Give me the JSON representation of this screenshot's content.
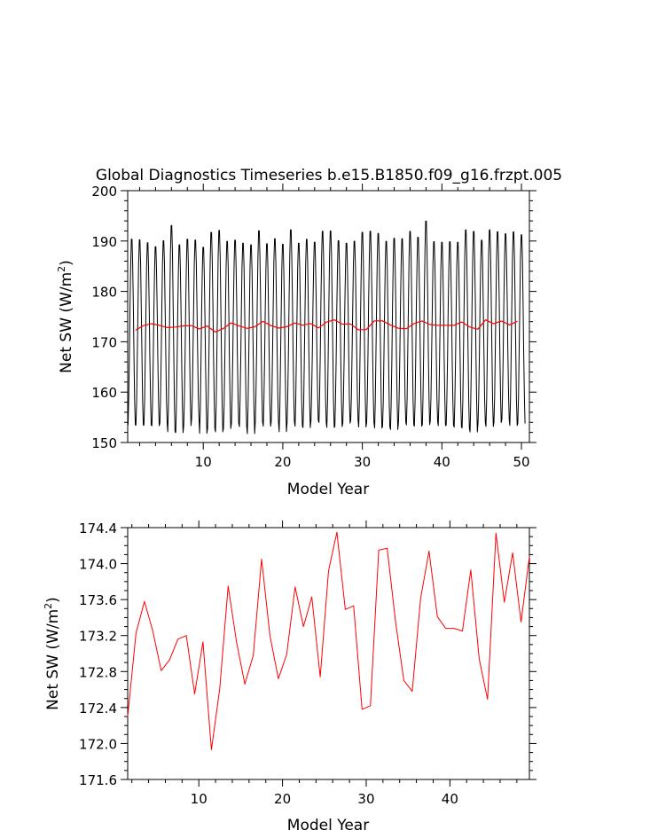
{
  "chart_data": [
    {
      "type": "line",
      "title": "Global Diagnostics Timeseries b.e15.B1850.f09_g16.frzpt.005",
      "xlabel": "Model Year",
      "ylabel": "Net SW (W/m²)",
      "ylabel_main": "Net SW (W/m",
      "ylabel_sup": "2",
      "ylabel_close": ")",
      "xlim": [
        0.5,
        51
      ],
      "ylim": [
        150,
        200
      ],
      "xticks": [
        10,
        20,
        30,
        40,
        50
      ],
      "yticks": [
        150,
        160,
        170,
        180,
        190,
        200
      ],
      "grid": false,
      "colors": {
        "monthly": "#000000",
        "annual": "#ff0000"
      },
      "monthly_amplitude": {
        "max": [
          191.0,
          190.9,
          190.3,
          189.5,
          190.7,
          193.8,
          189.9,
          191.0,
          190.8,
          189.4,
          192.4,
          192.8,
          190.6,
          190.8,
          190.2,
          189.9,
          192.7,
          190.1,
          191.1,
          190.0,
          192.9,
          190.2,
          191.0,
          190.4,
          192.6,
          192.7,
          190.7,
          190.2,
          190.6,
          192.4,
          192.6,
          192.2,
          190.6,
          191.2,
          191.1,
          192.6,
          191.4,
          194.7,
          190.5,
          190.4,
          190.5,
          190.4,
          192.9,
          192.6,
          190.8,
          192.9,
          192.5,
          192.1,
          192.5,
          191.9
        ],
        "min": [
          152.8,
          152.8,
          152.8,
          152.7,
          153.2,
          151.4,
          151.3,
          152.7,
          154.1,
          151.2,
          152.1,
          151.4,
          152.1,
          153.1,
          152.5,
          151.1,
          153.4,
          152.6,
          153.3,
          151.5,
          153.4,
          152.6,
          152.3,
          153.8,
          153.3,
          152.3,
          152.5,
          153.2,
          153.8,
          152.4,
          153.3,
          152.2,
          152.5,
          151.9,
          153.4,
          152.8,
          152.6,
          152.8,
          153.6,
          152.7,
          152.8,
          152.4,
          152.2,
          151.4,
          153.3,
          152.5,
          153.3,
          154.0,
          152.7,
          153.1
        ]
      },
      "series": [
        {
          "values": [
            172.3,
            173.23,
            173.58,
            173.25,
            172.81,
            172.93,
            173.16,
            173.2,
            172.55,
            173.13,
            171.93,
            172.61,
            173.75,
            173.13,
            172.66,
            172.98,
            174.05,
            173.2,
            172.72,
            172.99,
            173.74,
            173.3,
            173.63,
            172.74,
            173.92,
            174.35,
            173.49,
            173.53,
            172.38,
            172.42,
            174.15,
            174.17,
            173.36,
            172.7,
            172.58,
            173.61,
            174.14,
            173.41,
            173.28,
            173.28,
            173.25,
            173.93,
            172.94,
            172.49,
            174.34,
            173.57,
            174.12,
            173.35,
            174.08
          ]
        }
      ]
    },
    {
      "type": "line",
      "title": "",
      "xlabel": "Model Year",
      "ylabel": "Net SW (W/m²)",
      "ylabel_main": "Net SW (W/m",
      "ylabel_sup": "2",
      "ylabel_close": ")",
      "x_start": 1.5,
      "xlim": [
        1.5,
        49.5
      ],
      "ylim": [
        171.6,
        174.4
      ],
      "xticks": [
        10,
        20,
        30,
        40
      ],
      "yticks": [
        171.6,
        172.0,
        172.4,
        172.8,
        173.2,
        173.6,
        174.0,
        174.4
      ],
      "grid": false,
      "colors": {
        "line": "#ff0000"
      },
      "series": [
        {
          "values": [
            172.3,
            173.23,
            173.58,
            173.25,
            172.81,
            172.93,
            173.16,
            173.2,
            172.55,
            173.13,
            171.93,
            172.61,
            173.75,
            173.13,
            172.66,
            172.98,
            174.05,
            173.2,
            172.72,
            172.99,
            173.74,
            173.3,
            173.63,
            172.74,
            173.92,
            174.35,
            173.49,
            173.53,
            172.38,
            172.42,
            174.15,
            174.17,
            173.36,
            172.7,
            172.58,
            173.61,
            174.14,
            173.41,
            173.28,
            173.28,
            173.25,
            173.93,
            172.94,
            172.49,
            174.34,
            173.57,
            174.12,
            173.35,
            174.08
          ]
        }
      ]
    }
  ]
}
